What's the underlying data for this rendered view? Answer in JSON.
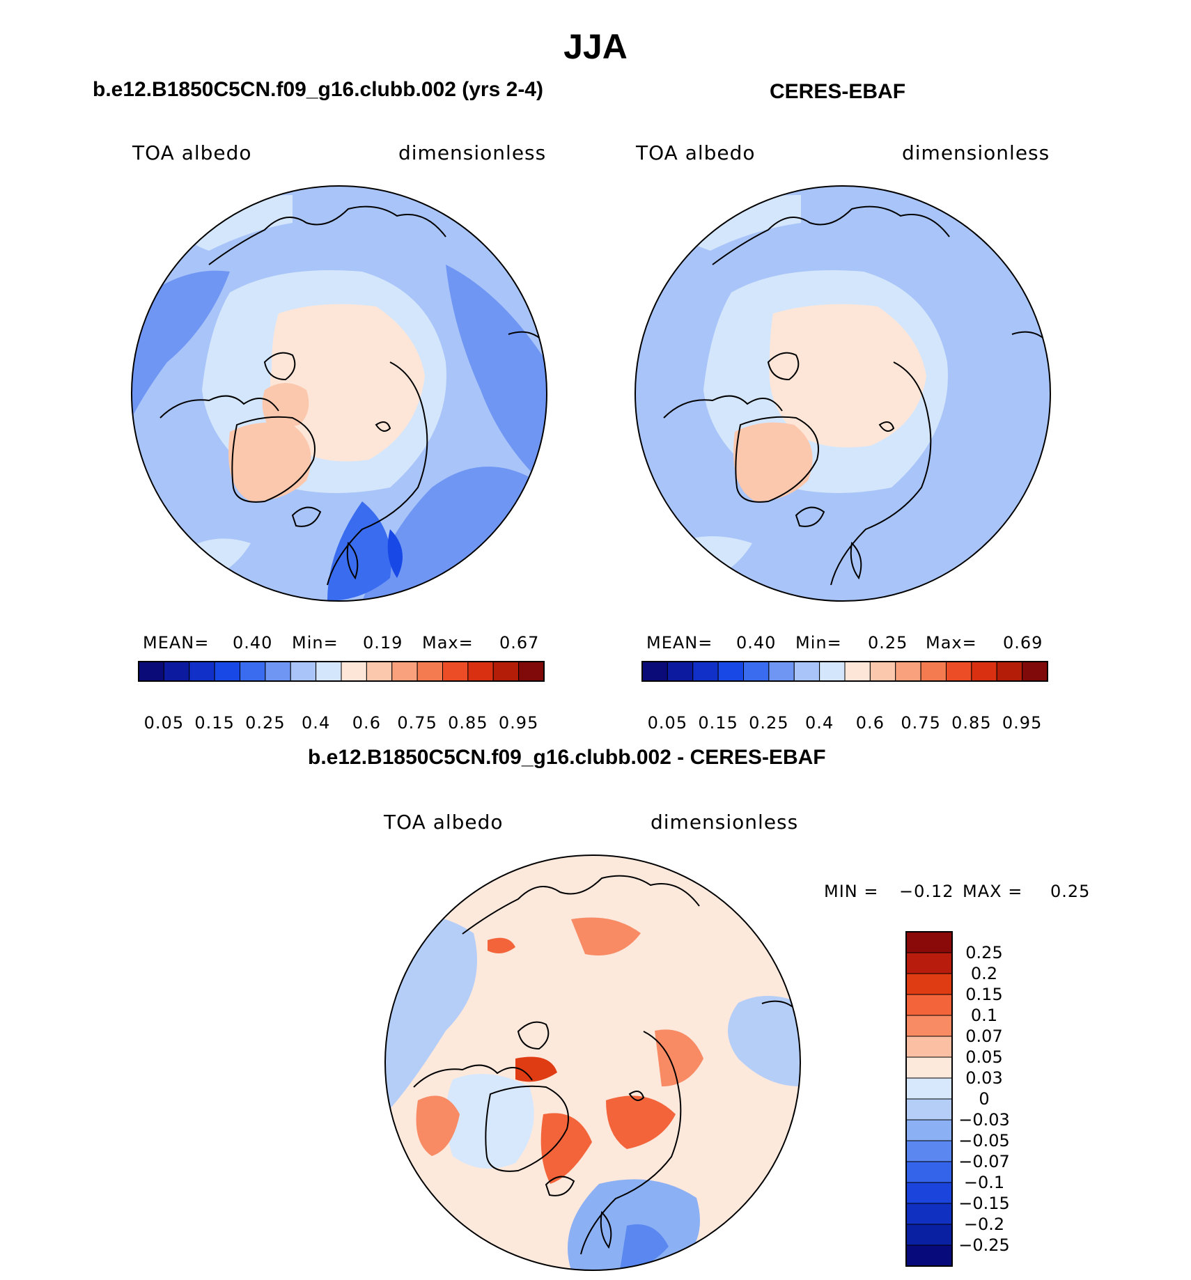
{
  "figure": {
    "season": "JJA",
    "panels": [
      {
        "title": "b.e12.B1850C5CN.f09_g16.clubb.002 (yrs 2-4)",
        "variable": "TOA albedo",
        "units": "dimensionless",
        "stats": {
          "mean_label": "MEAN=",
          "mean": "0.40",
          "min_label": "Min=",
          "min": "0.19",
          "max_label": "Max=",
          "max": "0.67"
        }
      },
      {
        "title": "CERES-EBAF",
        "variable": "TOA albedo",
        "units": "dimensionless",
        "stats": {
          "mean_label": "MEAN=",
          "mean": "0.40",
          "min_label": "Min=",
          "min": "0.25",
          "max_label": "Max=",
          "max": "0.69"
        }
      },
      {
        "title": "b.e12.B1850C5CN.f09_g16.clubb.002 - CERES-EBAF",
        "variable": "TOA albedo",
        "units": "dimensionless",
        "stats": {
          "min_label": "MIN =",
          "min": "−0.12",
          "max_label": "MAX =",
          "max": "0.25"
        }
      }
    ]
  },
  "colorbars": {
    "albedo": {
      "colors": [
        "#0a0a78",
        "#0c1aa0",
        "#1030c8",
        "#1848e6",
        "#3a6cf0",
        "#7096f4",
        "#a8c4f8",
        "#d4e6fc",
        "#fde6d8",
        "#fbc8ae",
        "#f9a07c",
        "#f47a50",
        "#ec4c26",
        "#d83010",
        "#b41e08",
        "#800a0a"
      ],
      "tick_labels": [
        "0.05",
        "0.15",
        "0.25",
        "0.4",
        "0.6",
        "0.75",
        "0.85",
        "0.95"
      ]
    },
    "difference": {
      "colors_top_to_bottom": [
        "#8a0a0a",
        "#b81c0c",
        "#e03c14",
        "#f4643a",
        "#f88a64",
        "#fbc0a4",
        "#fde8dc",
        "#d8e8fc",
        "#b4cef8",
        "#8cb0f4",
        "#5a88f0",
        "#3464ea",
        "#1a44dc",
        "#1030c2",
        "#0a20a2",
        "#060a7a"
      ],
      "tick_labels": [
        "0.25",
        "0.2",
        "0.15",
        "0.1",
        "0.07",
        "0.05",
        "0.03",
        "0",
        "−0.03",
        "−0.05",
        "−0.07",
        "−0.1",
        "−0.15",
        "−0.2",
        "−0.25"
      ]
    }
  },
  "chart_data": [
    {
      "type": "heatmap",
      "title": "b.e12.B1850C5CN.f09_g16.clubb.002 (yrs 2-4)",
      "variable": "TOA albedo",
      "units": "dimensionless",
      "projection": "north polar stereographic",
      "season": "JJA",
      "mean": 0.4,
      "min": 0.19,
      "max": 0.67,
      "contour_levels": [
        0.05,
        0.1,
        0.15,
        0.2,
        0.25,
        0.3,
        0.35,
        0.4,
        0.5,
        0.6,
        0.7,
        0.75,
        0.8,
        0.85,
        0.9,
        0.95
      ]
    },
    {
      "type": "heatmap",
      "title": "CERES-EBAF",
      "variable": "TOA albedo",
      "units": "dimensionless",
      "projection": "north polar stereographic",
      "season": "JJA",
      "mean": 0.4,
      "min": 0.25,
      "max": 0.69,
      "contour_levels": [
        0.05,
        0.1,
        0.15,
        0.2,
        0.25,
        0.3,
        0.35,
        0.4,
        0.5,
        0.6,
        0.7,
        0.75,
        0.8,
        0.85,
        0.9,
        0.95
      ]
    },
    {
      "type": "heatmap",
      "title": "b.e12.B1850C5CN.f09_g16.clubb.002 - CERES-EBAF",
      "variable": "TOA albedo",
      "units": "dimensionless",
      "projection": "north polar stereographic",
      "season": "JJA",
      "min": -0.12,
      "max": 0.25,
      "contour_levels": [
        -0.25,
        -0.2,
        -0.15,
        -0.1,
        -0.07,
        -0.05,
        -0.03,
        0,
        0.03,
        0.05,
        0.07,
        0.1,
        0.15,
        0.2,
        0.25
      ]
    }
  ]
}
